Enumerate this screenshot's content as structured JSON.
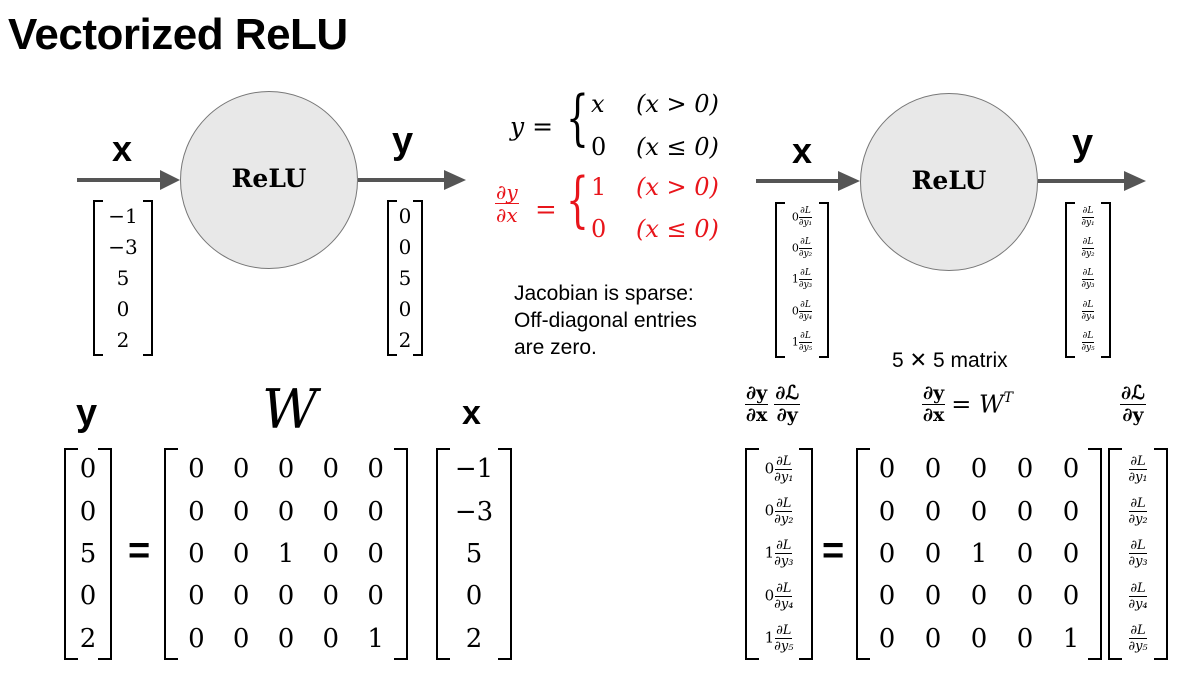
{
  "title": "Vectorized ReLU",
  "relu_label": "ReLU",
  "x_label": "x",
  "y_label": "y",
  "input_vector": [
    "−1",
    "−3",
    "5",
    "0",
    "2"
  ],
  "output_vector": [
    "0",
    "0",
    "5",
    "0",
    "2"
  ],
  "equation": {
    "lhs": "y =",
    "case1_value": "x",
    "case1_cond": "(x > 0)",
    "case2_value": "0",
    "case2_cond": "(x ≤ 0)",
    "deriv_num": "∂y",
    "deriv_den": "∂x",
    "deriv_eq": "=",
    "deriv_case1_value": "1",
    "deriv_case1_cond": "(x > 0)",
    "deriv_case2_value": "0",
    "deriv_case2_cond": "(x ≤ 0)"
  },
  "note": [
    "Jacobian is sparse:",
    "Off-diagonal entries",
    "are zero."
  ],
  "grad_in_coeffs": [
    "0",
    "0",
    "1",
    "0",
    "1"
  ],
  "grad_num": "∂L",
  "grad_dens": [
    "∂y₁",
    "∂y₂",
    "∂y₃",
    "∂y₄",
    "∂y₅"
  ],
  "matrix_caption": "5 ✕ 5 matrix",
  "W_label": "W",
  "equals": "=",
  "W_matrix": [
    [
      "0",
      "0",
      "0",
      "0",
      "0"
    ],
    [
      "0",
      "0",
      "0",
      "0",
      "0"
    ],
    [
      "0",
      "0",
      "1",
      "0",
      "0"
    ],
    [
      "0",
      "0",
      "0",
      "0",
      "0"
    ],
    [
      "0",
      "0",
      "0",
      "0",
      "1"
    ]
  ],
  "bottom_right_labels": {
    "dydx_num": "∂y",
    "dydx_den": "∂x",
    "dLdy_num": "∂ℒ",
    "dLdy_den": "∂y",
    "wt_eq": "= W",
    "wt_sup": "T"
  },
  "colors": {
    "arrow": "#555555",
    "circle_fill": "#e8e8e8",
    "accent": "#e8151b"
  }
}
